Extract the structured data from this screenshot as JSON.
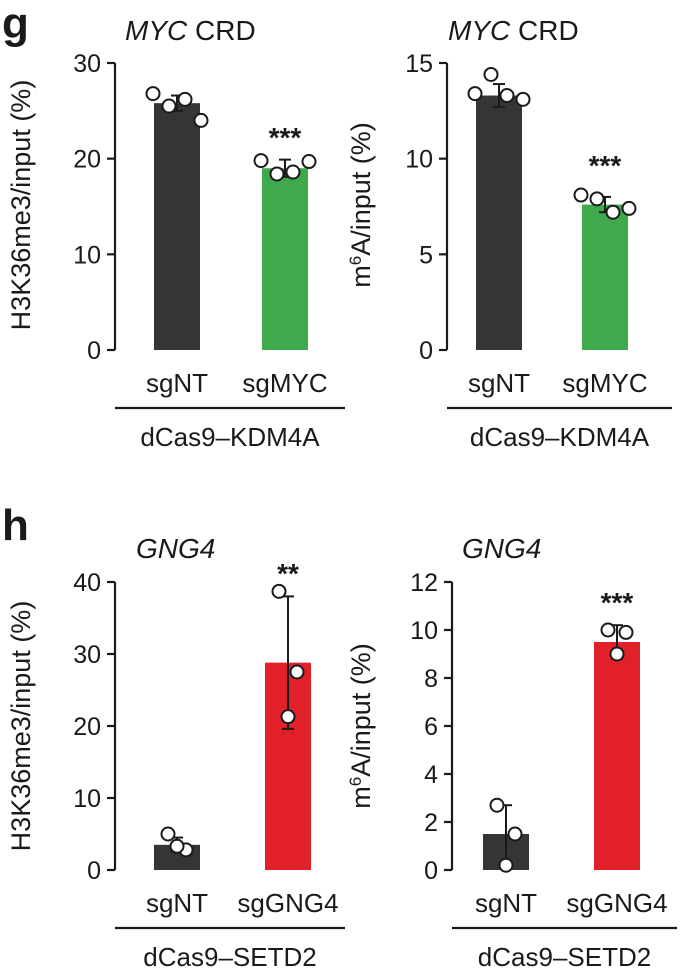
{
  "panels": [
    {
      "letter": "g"
    },
    {
      "letter": "h"
    }
  ],
  "chart_data": [
    {
      "type": "bar",
      "panel": "g",
      "title_italic": "MYC",
      "title_rest": " CRD",
      "ylabel": "H3K36me3/input (%)",
      "ylim": [
        0,
        30
      ],
      "yticks": [
        0,
        10,
        20,
        30
      ],
      "categories": [
        "sgNT",
        "sgMYC"
      ],
      "group_label": "dCas9–KDM4A",
      "values": [
        25.8,
        19.0
      ],
      "errors": [
        0.8,
        0.9
      ],
      "points": [
        [
          26.8,
          25.5,
          26.2,
          24.0
        ],
        [
          19.8,
          18.4,
          18.6,
          19.7
        ]
      ],
      "colors": [
        "#353535",
        "#3eaa4b"
      ],
      "significance": [
        "",
        "***"
      ]
    },
    {
      "type": "bar",
      "panel": "g",
      "title_italic": "MYC",
      "title_rest": " CRD",
      "ylabel_main": "m",
      "ylabel_sup": "6",
      "ylabel_rest": "A/input (%)",
      "ylim": [
        0,
        15
      ],
      "yticks": [
        0,
        5,
        10,
        15
      ],
      "categories": [
        "sgNT",
        "sgMYC"
      ],
      "group_label": "dCas9–KDM4A",
      "values": [
        13.3,
        7.6
      ],
      "errors": [
        0.6,
        0.4
      ],
      "points": [
        [
          13.4,
          14.4,
          13.3,
          13.1
        ],
        [
          8.1,
          7.9,
          7.2,
          7.4
        ]
      ],
      "colors": [
        "#353535",
        "#3eaa4b"
      ],
      "significance": [
        "",
        "***"
      ]
    },
    {
      "type": "bar",
      "panel": "h",
      "title_italic": "GNG4",
      "title_rest": "",
      "ylabel": "H3K36me3/input (%)",
      "ylim": [
        0,
        40
      ],
      "yticks": [
        0,
        10,
        20,
        30,
        40
      ],
      "categories": [
        "sgNT",
        "sgGNG4"
      ],
      "group_label": "dCas9–SETD2",
      "values": [
        3.5,
        28.8
      ],
      "errors": [
        1.0,
        9.2
      ],
      "points": [
        [
          5.0,
          2.8,
          3.3
        ],
        [
          38.7,
          27.5,
          21.3
        ]
      ],
      "colors": [
        "#353535",
        "#e2202a"
      ],
      "significance": [
        "",
        "**"
      ]
    },
    {
      "type": "bar",
      "panel": "h",
      "title_italic": "GNG4",
      "title_rest": "",
      "ylabel_main": "m",
      "ylabel_sup": "6",
      "ylabel_rest": "A/input (%)",
      "ylim": [
        0,
        12
      ],
      "yticks": [
        0,
        2,
        4,
        6,
        8,
        10,
        12
      ],
      "categories": [
        "sgNT",
        "sgGNG4"
      ],
      "group_label": "dCas9–SETD2",
      "values": [
        1.5,
        9.5
      ],
      "errors": [
        1.2,
        0.7
      ],
      "points": [
        [
          2.7,
          1.5,
          0.2
        ],
        [
          10.0,
          9.9,
          9.0
        ]
      ],
      "colors": [
        "#353535",
        "#e2202a"
      ],
      "significance": [
        "",
        "***"
      ]
    }
  ]
}
